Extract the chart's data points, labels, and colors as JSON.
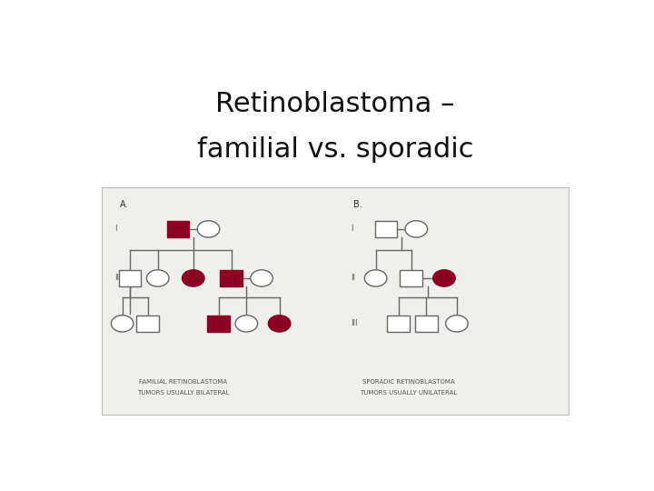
{
  "title_line1": "Retinoblastoma –",
  "title_line2": "familial vs. sporadic",
  "title_fontsize": 22,
  "bg_color": "#ffffff",
  "panel_bg": "#efefed",
  "border_color": "#bbbbbb",
  "label_A": "A.",
  "label_B": "B.",
  "caption_A_line1": "FAMILIAL RETINOBLASTOMA",
  "caption_A_line2": "TUMORS USUALLY BILATERAL",
  "caption_B_line1": "SPORADIC RETINOBLASTOMA",
  "caption_B_line2": "TUMORS USUALLY UNILATERAL",
  "affected_color": "#8b0020",
  "line_color": "#666666",
  "roman_color": "#555555",
  "symbol_size": 0.022,
  "line_width": 1.0,
  "caption_fontsize": 5.0,
  "label_fontsize": 7,
  "roman_fontsize": 6
}
